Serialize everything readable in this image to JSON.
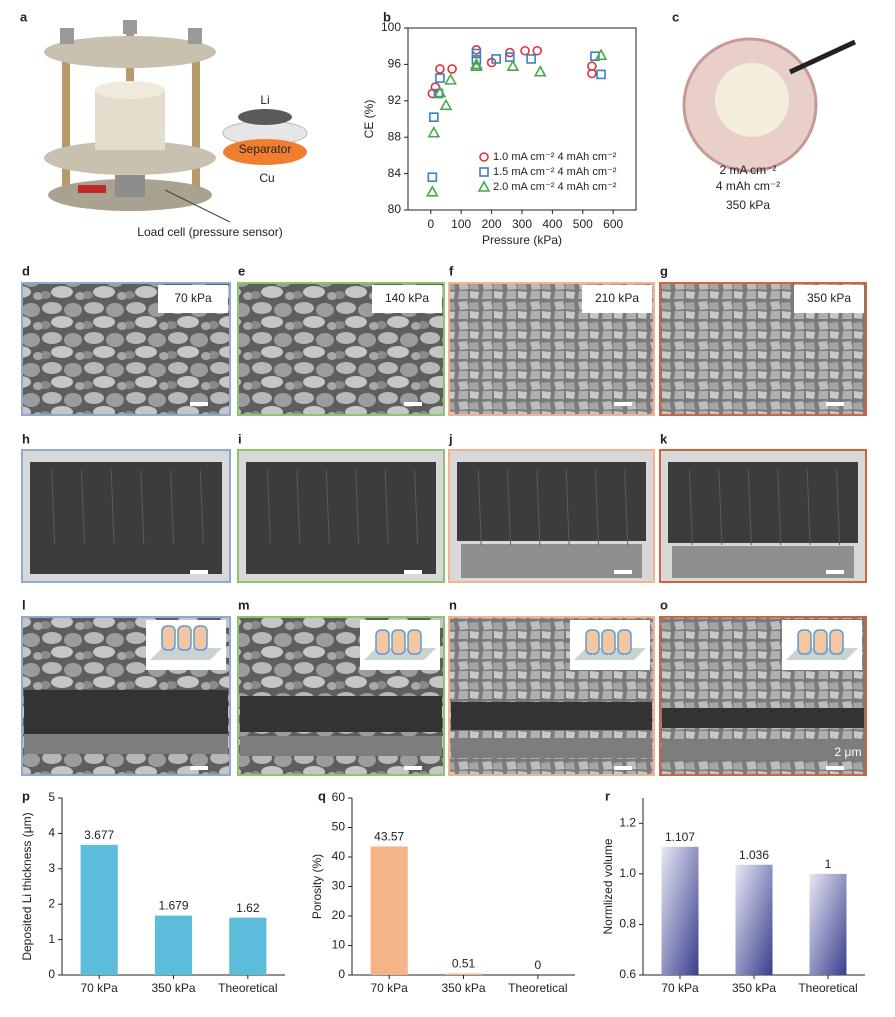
{
  "panel_labels": [
    "a",
    "b",
    "c",
    "d",
    "e",
    "f",
    "g",
    "h",
    "i",
    "j",
    "k",
    "l",
    "m",
    "n",
    "o",
    "p",
    "q",
    "r"
  ],
  "figure_a": {
    "top_label": "Li",
    "middle_label": "Separator",
    "bottom_label": "Cu",
    "caption": "Load cell (pressure sensor)"
  },
  "figure_c": {
    "lines": [
      "2 mA cm⁻²",
      "4 mAh cm⁻²",
      "350 kPa"
    ]
  },
  "sem_labels": [
    "70 kPa",
    "140 kPa",
    "210 kPa",
    "350 kPa"
  ],
  "scale_bar": "2 μm",
  "chart_data": [
    {
      "type": "scatter",
      "xlabel": "Pressure (kPa)",
      "ylabel": "CE (%)",
      "xlim": [
        -75,
        675
      ],
      "xticks": [
        0,
        100,
        200,
        300,
        400,
        500,
        600
      ],
      "ylim": [
        80,
        100
      ],
      "yticks": [
        80,
        84,
        88,
        92,
        96,
        100
      ],
      "legend": "lower right",
      "series": [
        {
          "name": "1.0 mA cm⁻² 4 mAh cm⁻²",
          "color": "#d9363e",
          "marker": "circle",
          "x": [
            5,
            15,
            30,
            70,
            150,
            200,
            260,
            310,
            350,
            530,
            530
          ],
          "values": [
            92.8,
            93.5,
            95.5,
            95.5,
            97.6,
            96.2,
            97.3,
            97.5,
            97.5,
            95.8,
            95.0
          ]
        },
        {
          "name": "1.5 mA cm⁻² 4 mAh cm⁻²",
          "color": "#3d7fc0",
          "marker": "square",
          "x": [
            5,
            10,
            25,
            30,
            150,
            150,
            215,
            260,
            330,
            540,
            560
          ],
          "values": [
            83.6,
            90.2,
            92.8,
            94.5,
            97.2,
            96.5,
            96.6,
            96.8,
            96.6,
            96.9,
            94.9
          ]
        },
        {
          "name": "2.0 mA cm⁻² 4 mAh cm⁻²",
          "color": "#4aa84a",
          "marker": "triangle",
          "x": [
            5,
            10,
            30,
            50,
            65,
            150,
            150,
            270,
            360,
            560
          ],
          "values": [
            82.0,
            88.5,
            92.9,
            91.5,
            94.3,
            95.8,
            96.0,
            95.8,
            95.2,
            97.0
          ]
        }
      ]
    },
    {
      "type": "bar",
      "ylabel": "Deposited Li thickness (μm)",
      "categories": [
        "70 kPa",
        "350 kPa",
        "Theoretical"
      ],
      "values": [
        3.677,
        1.679,
        1.62
      ],
      "color": "#5cbddb",
      "ylim": [
        0,
        5
      ],
      "yticks": [
        0,
        1,
        2,
        3,
        4,
        5
      ]
    },
    {
      "type": "bar",
      "ylabel": "Porosity (%)",
      "categories": [
        "70 kPa",
        "350 kPa",
        "Theoretical"
      ],
      "values": [
        43.57,
        0.51,
        0
      ],
      "color": "#f5b488",
      "ylim": [
        0,
        60
      ],
      "yticks": [
        0,
        10,
        20,
        30,
        40,
        50,
        60
      ]
    },
    {
      "type": "bar",
      "ylabel": "Normlized volume",
      "categories": [
        "70 kPa",
        "350 kPa",
        "Theoretical"
      ],
      "values": [
        1.107,
        1.036,
        1
      ],
      "color": "#3a3e8c",
      "gradient": true,
      "ylim": [
        0.6,
        1.3
      ],
      "yticks": [
        0.6,
        0.8,
        {
          "value": 1,
          "label": "1.0"
        },
        1.2
      ]
    }
  ]
}
